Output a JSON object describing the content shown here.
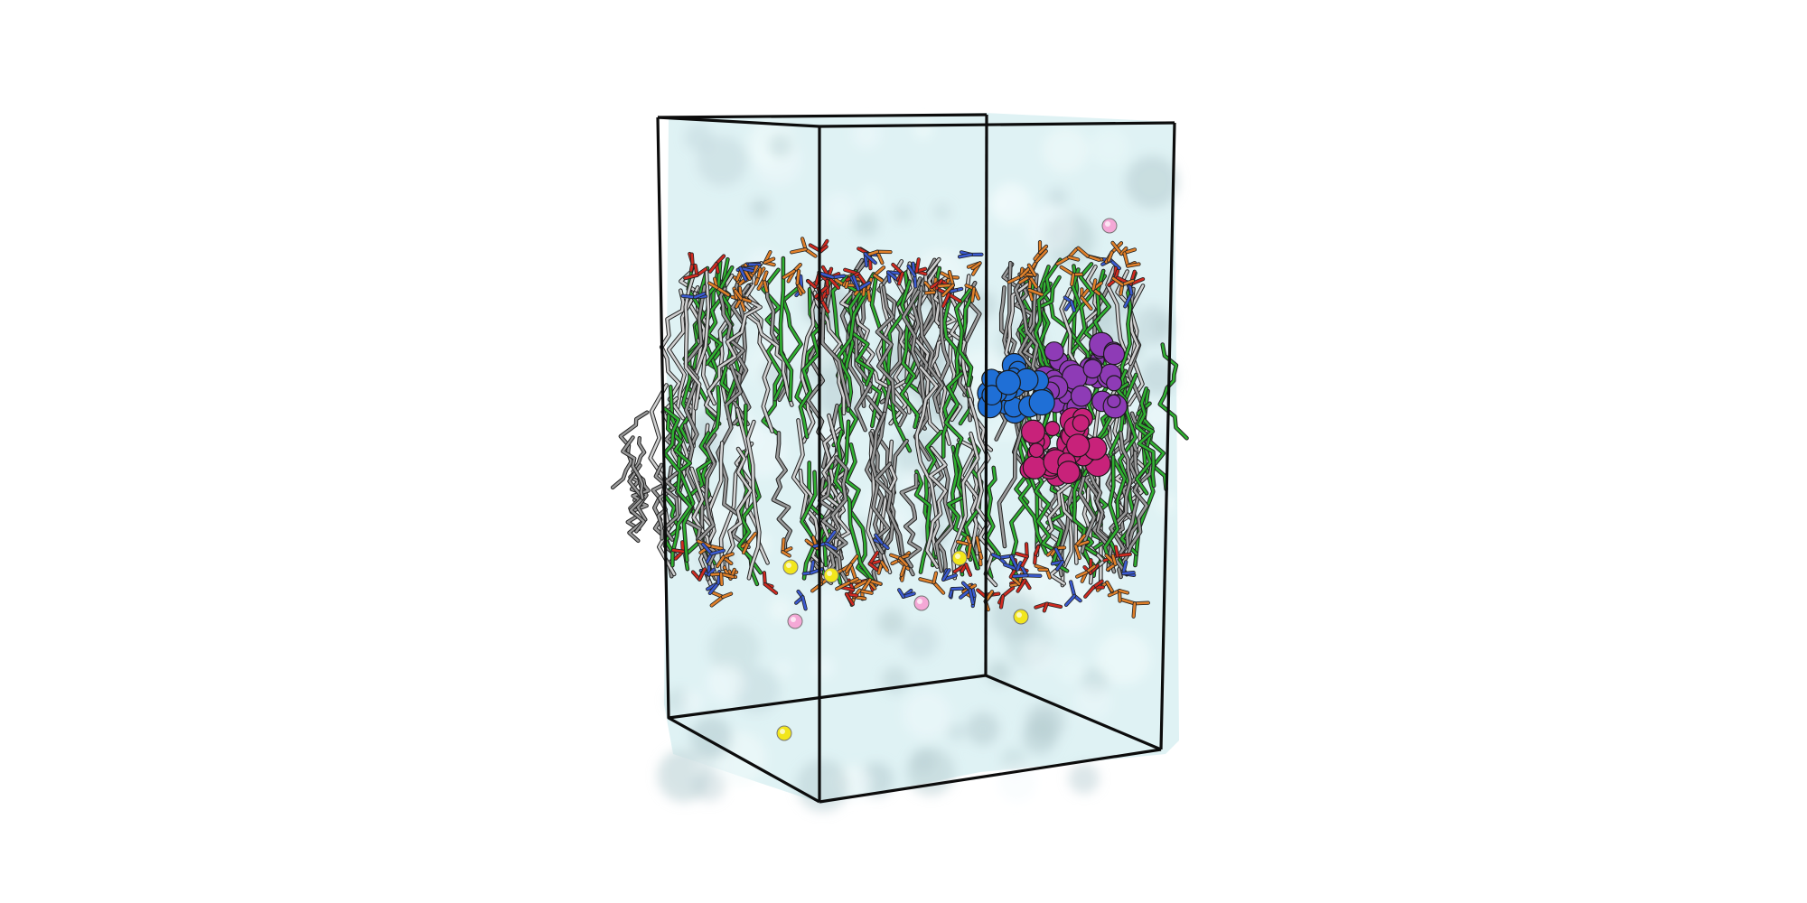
{
  "scene": {
    "background": "#ffffff",
    "colors": {
      "water": "#dff2f4",
      "water_shadow": "#b9cfd3",
      "box_edge": "#0c0c0c",
      "lipid_gray": "#9a9a9a",
      "lipid_light": "#d0d0d0",
      "lipid_green": "#2fb030",
      "headgroup_orange": "#e0802a",
      "headgroup_red": "#d02a20",
      "nitrogen_blue": "#3a5ad0",
      "protein_blue": "#1f6fd6",
      "protein_purple": "#8e3bb6",
      "protein_magenta": "#c8227a",
      "ion_pink": "#f4a8d6",
      "ion_yellow": "#f2e61c"
    },
    "icons": [
      "simulation-box-outline",
      "membrane-bilayer",
      "solvent-surface",
      "peptide-cluster",
      "ions"
    ]
  }
}
